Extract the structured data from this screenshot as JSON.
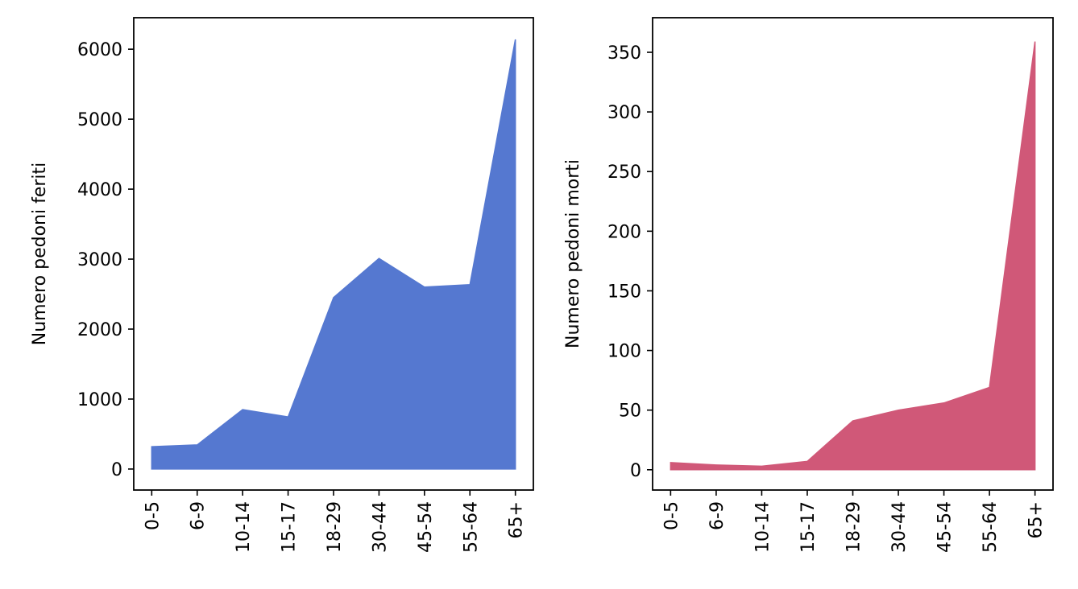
{
  "chart_data": [
    {
      "type": "area",
      "categories": [
        "0-5",
        "6-9",
        "10-14",
        "15-17",
        "18-29",
        "30-44",
        "45-54",
        "55-64",
        "65+"
      ],
      "values": [
        320,
        345,
        850,
        745,
        2450,
        3010,
        2600,
        2635,
        6140
      ],
      "title": "",
      "xlabel": "",
      "ylabel": "Numero pedoni feriti",
      "ylim": [
        -300,
        6450
      ],
      "yticks": [
        0,
        1000,
        2000,
        3000,
        4000,
        5000,
        6000
      ],
      "color": "#5578d0",
      "grid": false
    },
    {
      "type": "area",
      "categories": [
        "0-5",
        "6-9",
        "10-14",
        "15-17",
        "18-29",
        "30-44",
        "45-54",
        "55-64",
        "65+"
      ],
      "values": [
        6,
        4,
        3,
        7,
        41,
        50,
        56,
        69,
        359
      ],
      "title": "",
      "xlabel": "",
      "ylabel": "Numero pedoni morti",
      "ylim": [
        -17,
        379
      ],
      "yticks": [
        0,
        50,
        100,
        150,
        200,
        250,
        300,
        350
      ],
      "color": "#d05878",
      "grid": false
    }
  ]
}
